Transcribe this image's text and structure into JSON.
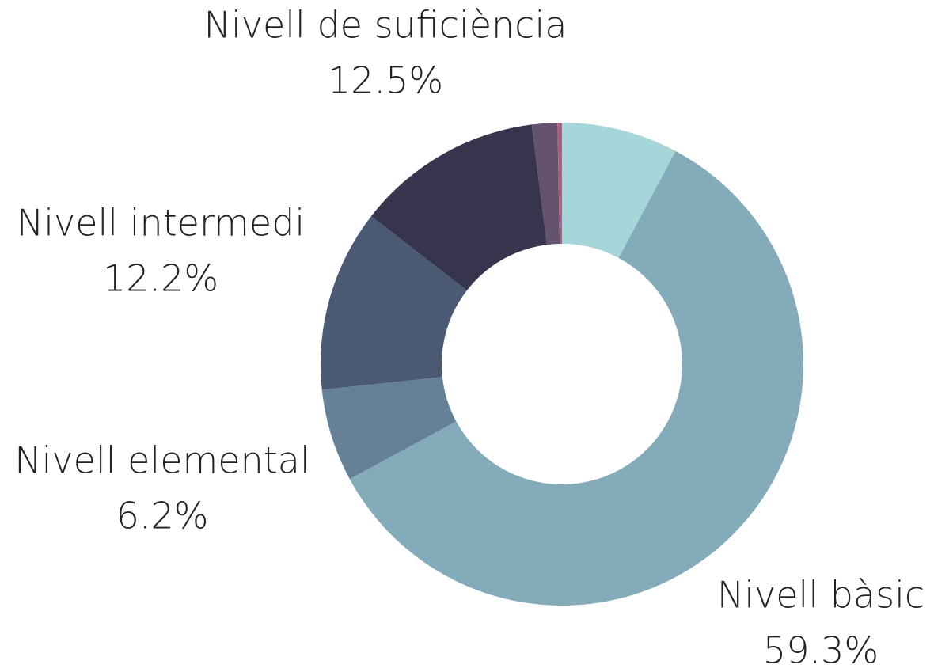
{
  "chart_data": {
    "type": "donut",
    "categories": [
      null,
      "Nivell bàsic",
      "Nivell elemental",
      "Nivell intermedi",
      "Nivell de suficiència",
      null,
      null
    ],
    "values": [
      7.8,
      59.3,
      6.2,
      12.2,
      12.5,
      1.7,
      0.3
    ],
    "value_labels": [
      null,
      "59.3%",
      "6.2%",
      "12.2%",
      "12.5%",
      null,
      null
    ],
    "colors": [
      "#a6d5da",
      "#84abb9",
      "#668196",
      "#4b5a73",
      "#37354d",
      "#65536e",
      "#b0607f"
    ]
  }
}
